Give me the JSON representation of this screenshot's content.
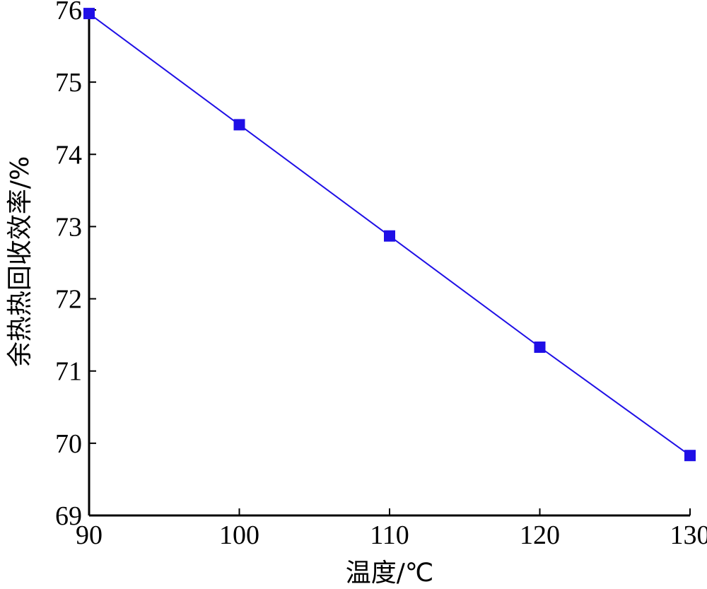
{
  "chart_data": {
    "type": "line",
    "title": "",
    "xlabel": "温度/℃",
    "ylabel": "余热热回收效率/%",
    "xlim": [
      90,
      130
    ],
    "ylim": [
      69,
      76
    ],
    "xticks": [
      90,
      100,
      110,
      120,
      130
    ],
    "yticks": [
      69,
      70,
      71,
      72,
      73,
      74,
      75,
      76
    ],
    "grid": false,
    "series": [
      {
        "x": [
          90,
          100,
          110,
          120,
          130
        ],
        "values": [
          75.95,
          74.41,
          72.87,
          71.33,
          69.83
        ],
        "color": "#1f0fe6",
        "marker": "square"
      }
    ]
  }
}
